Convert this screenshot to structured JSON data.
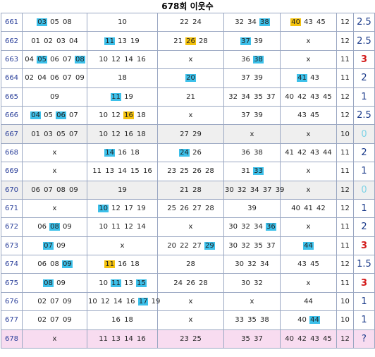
{
  "title": "678회 이웃수",
  "highlight_colors": {
    "blue": "#3cc0ea",
    "yellow": "#f4c20d",
    "red_text": "#d31a1a"
  },
  "rows": [
    {
      "round": "661",
      "cells": [
        [
          {
            "t": "03",
            "h": "b"
          },
          {
            "t": "05"
          },
          {
            "t": "08"
          }
        ],
        [
          {
            "t": "10"
          }
        ],
        [
          {
            "t": "22"
          },
          {
            "t": "24"
          }
        ],
        [
          {
            "t": "32"
          },
          {
            "t": "34"
          },
          {
            "t": "38",
            "h": "b"
          }
        ],
        [
          {
            "t": "40",
            "h": "y"
          },
          {
            "t": "43"
          },
          {
            "t": "45"
          }
        ]
      ],
      "count": "12",
      "sum": "2.5",
      "style": ""
    },
    {
      "round": "662",
      "cells": [
        [
          {
            "t": "01"
          },
          {
            "t": "02"
          },
          {
            "t": "03"
          },
          {
            "t": "04"
          }
        ],
        [
          {
            "t": "11",
            "h": "b"
          },
          {
            "t": "13"
          },
          {
            "t": "19"
          }
        ],
        [
          {
            "t": "21"
          },
          {
            "t": "26",
            "h": "y"
          },
          {
            "t": "28"
          }
        ],
        [
          {
            "t": "37",
            "h": "b"
          },
          {
            "t": "39"
          }
        ],
        [
          {
            "t": "x"
          }
        ]
      ],
      "count": "12",
      "sum": "2.5",
      "style": ""
    },
    {
      "round": "663",
      "cells": [
        [
          {
            "t": "04"
          },
          {
            "t": "05",
            "h": "b"
          },
          {
            "t": "06"
          },
          {
            "t": "07"
          },
          {
            "t": "08",
            "h": "b"
          }
        ],
        [
          {
            "t": "10"
          },
          {
            "t": "12"
          },
          {
            "t": "14"
          },
          {
            "t": "16"
          }
        ],
        [
          {
            "t": "x"
          }
        ],
        [
          {
            "t": "36"
          },
          {
            "t": "38",
            "h": "b"
          }
        ],
        [
          {
            "t": "x"
          }
        ]
      ],
      "count": "11",
      "sum": "3",
      "style": "red"
    },
    {
      "round": "664",
      "cells": [
        [
          {
            "t": "02"
          },
          {
            "t": "04"
          },
          {
            "t": "06"
          },
          {
            "t": "07"
          },
          {
            "t": "09"
          }
        ],
        [
          {
            "t": "18"
          }
        ],
        [
          {
            "t": "20",
            "h": "b"
          }
        ],
        [
          {
            "t": "37"
          },
          {
            "t": "39"
          }
        ],
        [
          {
            "t": "41",
            "h": "b"
          },
          {
            "t": "43"
          }
        ]
      ],
      "count": "11",
      "sum": "2",
      "style": ""
    },
    {
      "round": "665",
      "cells": [
        [
          {
            "t": "09"
          }
        ],
        [
          {
            "t": "11",
            "h": "b"
          },
          {
            "t": "19"
          }
        ],
        [
          {
            "t": "21"
          }
        ],
        [
          {
            "t": "32"
          },
          {
            "t": "34"
          },
          {
            "t": "35"
          },
          {
            "t": "37"
          }
        ],
        [
          {
            "t": "40"
          },
          {
            "t": "42"
          },
          {
            "t": "43"
          },
          {
            "t": "45"
          }
        ]
      ],
      "count": "12",
      "sum": "1",
      "style": ""
    },
    {
      "round": "666",
      "cells": [
        [
          {
            "t": "04",
            "h": "b"
          },
          {
            "t": "05"
          },
          {
            "t": "06",
            "h": "b"
          },
          {
            "t": "07"
          }
        ],
        [
          {
            "t": "10"
          },
          {
            "t": "12"
          },
          {
            "t": "16",
            "h": "y"
          },
          {
            "t": "18"
          }
        ],
        [
          {
            "t": "x"
          }
        ],
        [
          {
            "t": "37"
          },
          {
            "t": "39"
          }
        ],
        [
          {
            "t": "43"
          },
          {
            "t": "45"
          }
        ]
      ],
      "count": "12",
      "sum": "2.5",
      "style": ""
    },
    {
      "round": "667",
      "cells": [
        [
          {
            "t": "01"
          },
          {
            "t": "03"
          },
          {
            "t": "05"
          },
          {
            "t": "07"
          }
        ],
        [
          {
            "t": "10"
          },
          {
            "t": "12"
          },
          {
            "t": "16"
          },
          {
            "t": "18"
          }
        ],
        [
          {
            "t": "27"
          },
          {
            "t": "29"
          }
        ],
        [
          {
            "t": "x"
          }
        ],
        [
          {
            "t": "x"
          }
        ]
      ],
      "count": "10",
      "sum": "0",
      "style": "zero",
      "row_style": "gray"
    },
    {
      "round": "668",
      "cells": [
        [
          {
            "t": "x"
          }
        ],
        [
          {
            "t": "14",
            "h": "b"
          },
          {
            "t": "16"
          },
          {
            "t": "18"
          }
        ],
        [
          {
            "t": "24",
            "h": "b"
          },
          {
            "t": "26"
          }
        ],
        [
          {
            "t": "36"
          },
          {
            "t": "38"
          }
        ],
        [
          {
            "t": "41"
          },
          {
            "t": "42"
          },
          {
            "t": "43"
          },
          {
            "t": "44"
          }
        ]
      ],
      "count": "11",
      "sum": "2",
      "style": ""
    },
    {
      "round": "669",
      "cells": [
        [
          {
            "t": "x"
          }
        ],
        [
          {
            "t": "11"
          },
          {
            "t": "13"
          },
          {
            "t": "14"
          },
          {
            "t": "15"
          },
          {
            "t": "16"
          }
        ],
        [
          {
            "t": "23"
          },
          {
            "t": "25"
          },
          {
            "t": "26"
          },
          {
            "t": "28"
          }
        ],
        [
          {
            "t": "31"
          },
          {
            "t": "33",
            "h": "b"
          }
        ],
        [
          {
            "t": "x"
          }
        ]
      ],
      "count": "11",
      "sum": "1",
      "style": ""
    },
    {
      "round": "670",
      "cells": [
        [
          {
            "t": "06"
          },
          {
            "t": "07"
          },
          {
            "t": "08"
          },
          {
            "t": "09"
          }
        ],
        [
          {
            "t": "19"
          }
        ],
        [
          {
            "t": "21"
          },
          {
            "t": "28"
          }
        ],
        [
          {
            "t": "30"
          },
          {
            "t": "32"
          },
          {
            "t": "34"
          },
          {
            "t": "37"
          },
          {
            "t": "39"
          }
        ],
        [
          {
            "t": "x"
          }
        ]
      ],
      "count": "12",
      "sum": "0",
      "style": "zero",
      "row_style": "gray"
    },
    {
      "round": "671",
      "cells": [
        [
          {
            "t": "x"
          }
        ],
        [
          {
            "t": "10",
            "h": "b"
          },
          {
            "t": "12"
          },
          {
            "t": "17"
          },
          {
            "t": "19"
          }
        ],
        [
          {
            "t": "25"
          },
          {
            "t": "26"
          },
          {
            "t": "27"
          },
          {
            "t": "28"
          }
        ],
        [
          {
            "t": "39"
          }
        ],
        [
          {
            "t": "40"
          },
          {
            "t": "41"
          },
          {
            "t": "42"
          }
        ]
      ],
      "count": "12",
      "sum": "1",
      "style": ""
    },
    {
      "round": "672",
      "cells": [
        [
          {
            "t": "06"
          },
          {
            "t": "08",
            "h": "b"
          },
          {
            "t": "09"
          }
        ],
        [
          {
            "t": "10"
          },
          {
            "t": "11"
          },
          {
            "t": "12"
          },
          {
            "t": "14"
          }
        ],
        [
          {
            "t": "x"
          }
        ],
        [
          {
            "t": "30"
          },
          {
            "t": "32"
          },
          {
            "t": "34"
          },
          {
            "t": "36",
            "h": "b"
          }
        ],
        [
          {
            "t": "x"
          }
        ]
      ],
      "count": "11",
      "sum": "2",
      "style": ""
    },
    {
      "round": "673",
      "cells": [
        [
          {
            "t": "07",
            "h": "b"
          },
          {
            "t": "09"
          }
        ],
        [
          {
            "t": "x"
          }
        ],
        [
          {
            "t": "20"
          },
          {
            "t": "22"
          },
          {
            "t": "27"
          },
          {
            "t": "29",
            "h": "b"
          }
        ],
        [
          {
            "t": "30"
          },
          {
            "t": "32"
          },
          {
            "t": "35"
          },
          {
            "t": "37"
          }
        ],
        [
          {
            "t": "44",
            "h": "b"
          }
        ]
      ],
      "count": "11",
      "sum": "3",
      "style": "red"
    },
    {
      "round": "674",
      "cells": [
        [
          {
            "t": "06"
          },
          {
            "t": "08"
          },
          {
            "t": "09",
            "h": "b"
          }
        ],
        [
          {
            "t": "11",
            "h": "y"
          },
          {
            "t": "16"
          },
          {
            "t": "18"
          }
        ],
        [
          {
            "t": "28"
          }
        ],
        [
          {
            "t": "30"
          },
          {
            "t": "32"
          },
          {
            "t": "34"
          }
        ],
        [
          {
            "t": "43"
          },
          {
            "t": "45"
          }
        ]
      ],
      "count": "12",
      "sum": "1.5",
      "style": ""
    },
    {
      "round": "675",
      "cells": [
        [
          {
            "t": "08",
            "h": "b"
          },
          {
            "t": "09"
          }
        ],
        [
          {
            "t": "10"
          },
          {
            "t": "11",
            "h": "b"
          },
          {
            "t": "13"
          },
          {
            "t": "15",
            "h": "b"
          }
        ],
        [
          {
            "t": "24"
          },
          {
            "t": "26"
          },
          {
            "t": "28"
          }
        ],
        [
          {
            "t": "30"
          },
          {
            "t": "32"
          }
        ],
        [
          {
            "t": "x"
          }
        ]
      ],
      "count": "11",
      "sum": "3",
      "style": "red"
    },
    {
      "round": "676",
      "cells": [
        [
          {
            "t": "02"
          },
          {
            "t": "07"
          },
          {
            "t": "09"
          }
        ],
        [
          {
            "t": "10"
          },
          {
            "t": "12"
          },
          {
            "t": "14"
          },
          {
            "t": "16"
          },
          {
            "t": "17",
            "h": "b"
          },
          {
            "t": "19"
          }
        ],
        [
          {
            "t": "x"
          }
        ],
        [
          {
            "t": "x"
          }
        ],
        [
          {
            "t": "44"
          }
        ]
      ],
      "count": "10",
      "sum": "1",
      "style": ""
    },
    {
      "round": "677",
      "cells": [
        [
          {
            "t": "02"
          },
          {
            "t": "07"
          },
          {
            "t": "09"
          }
        ],
        [
          {
            "t": "16"
          },
          {
            "t": "18"
          }
        ],
        [
          {
            "t": "x"
          }
        ],
        [
          {
            "t": "33"
          },
          {
            "t": "35"
          },
          {
            "t": "38"
          }
        ],
        [
          {
            "t": "40"
          },
          {
            "t": "44",
            "h": "b"
          }
        ]
      ],
      "count": "10",
      "sum": "1",
      "style": ""
    },
    {
      "round": "678",
      "cells": [
        [
          {
            "t": "x"
          }
        ],
        [
          {
            "t": "11"
          },
          {
            "t": "13"
          },
          {
            "t": "14"
          },
          {
            "t": "16"
          }
        ],
        [
          {
            "t": "23"
          },
          {
            "t": "25"
          }
        ],
        [
          {
            "t": "35"
          },
          {
            "t": "37"
          }
        ],
        [
          {
            "t": "40"
          },
          {
            "t": "42"
          },
          {
            "t": "43"
          },
          {
            "t": "45"
          }
        ]
      ],
      "count": "12",
      "sum": "?",
      "style": "",
      "row_style": "pink"
    }
  ]
}
